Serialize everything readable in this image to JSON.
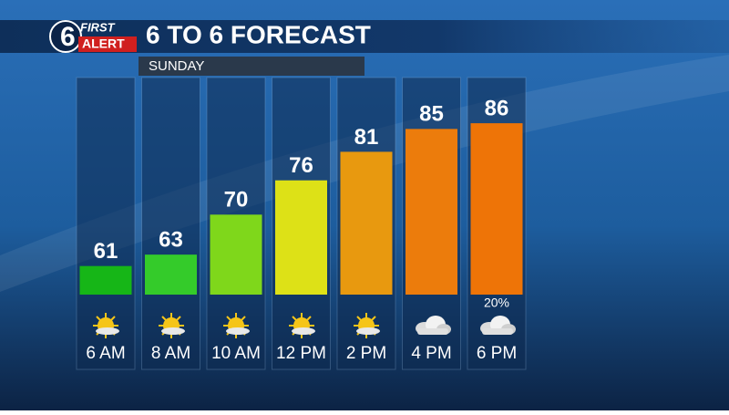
{
  "logo": {
    "number": "6",
    "top": "FIRST",
    "bottom": "ALERT"
  },
  "chart_data": {
    "type": "bar",
    "title": "6 TO 6 FORECAST",
    "subtitle": "SUNDAY",
    "categories": [
      "6 AM",
      "8 AM",
      "10 AM",
      "12 PM",
      "2 PM",
      "4 PM",
      "6 PM"
    ],
    "values": [
      61,
      63,
      70,
      76,
      81,
      85,
      86
    ],
    "colors": [
      "#16b617",
      "#34cb2a",
      "#7fd71b",
      "#dde117",
      "#e8990f",
      "#ec7c0c",
      "#ee7407"
    ],
    "ylim": [
      56,
      94
    ],
    "precipitation": {
      "values": [
        null,
        null,
        null,
        null,
        null,
        null,
        20
      ],
      "value_labels": [
        null,
        null,
        null,
        null,
        null,
        null,
        "20%"
      ]
    }
  }
}
